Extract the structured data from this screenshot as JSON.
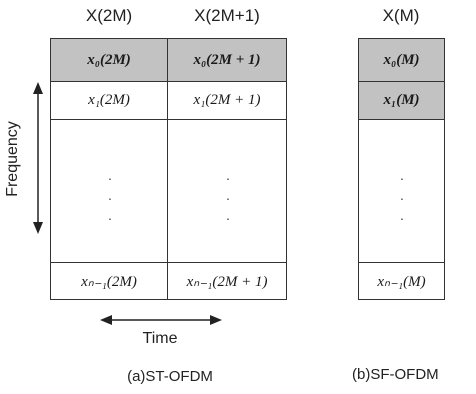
{
  "headers": {
    "col_2m": "X(2M)",
    "col_2m1": "X(2M+1)",
    "col_m": "X(M)"
  },
  "st_ofdm": {
    "rows": [
      {
        "a": "x₀(2M)",
        "b": "x₀(2M + 1)",
        "shaded": true
      },
      {
        "a": "x₁(2M)",
        "b": "x₁(2M + 1)",
        "shaded": false
      },
      {
        "a": "xₙ₋₁(2M)",
        "b": "xₙ₋₁(2M + 1)",
        "shaded": false
      }
    ],
    "caption": "(a)ST-OFDM"
  },
  "sf_ofdm": {
    "rows": [
      {
        "a": "x₀(M)",
        "shaded": true
      },
      {
        "a": "x₁(M)",
        "shaded": true
      },
      {
        "a": "xₙ₋₁(M)",
        "shaded": false
      }
    ],
    "caption": "(b)SF-OFDM"
  },
  "axes": {
    "vertical_label": "Frequency",
    "horizontal_label": "Time"
  },
  "dots": "·"
}
